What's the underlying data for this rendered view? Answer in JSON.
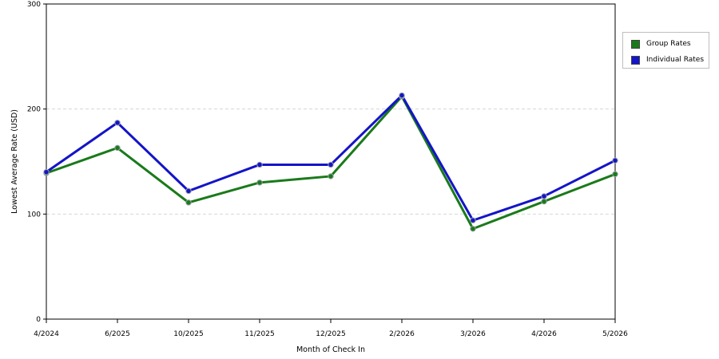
{
  "chart_data": {
    "type": "line",
    "title": "",
    "xlabel": "Month of Check In",
    "ylabel": "Lowest Average Rate (USD)",
    "categories": [
      "4/2024",
      "6/2025",
      "10/2025",
      "11/2025",
      "12/2025",
      "2/2026",
      "3/2026",
      "4/2026",
      "5/2026"
    ],
    "ylim": [
      0,
      300
    ],
    "yticks": [
      0,
      100,
      200,
      300
    ],
    "grid": true,
    "legend_position": "right",
    "series": [
      {
        "name": "Group Rates",
        "color": "#1a7a1a",
        "values": [
          139,
          163,
          111,
          130,
          136,
          212,
          86,
          112,
          138
        ]
      },
      {
        "name": "Individual Rates",
        "color": "#1414c8",
        "values": [
          140,
          187,
          122,
          147,
          147,
          213,
          94,
          117,
          151
        ]
      }
    ]
  }
}
